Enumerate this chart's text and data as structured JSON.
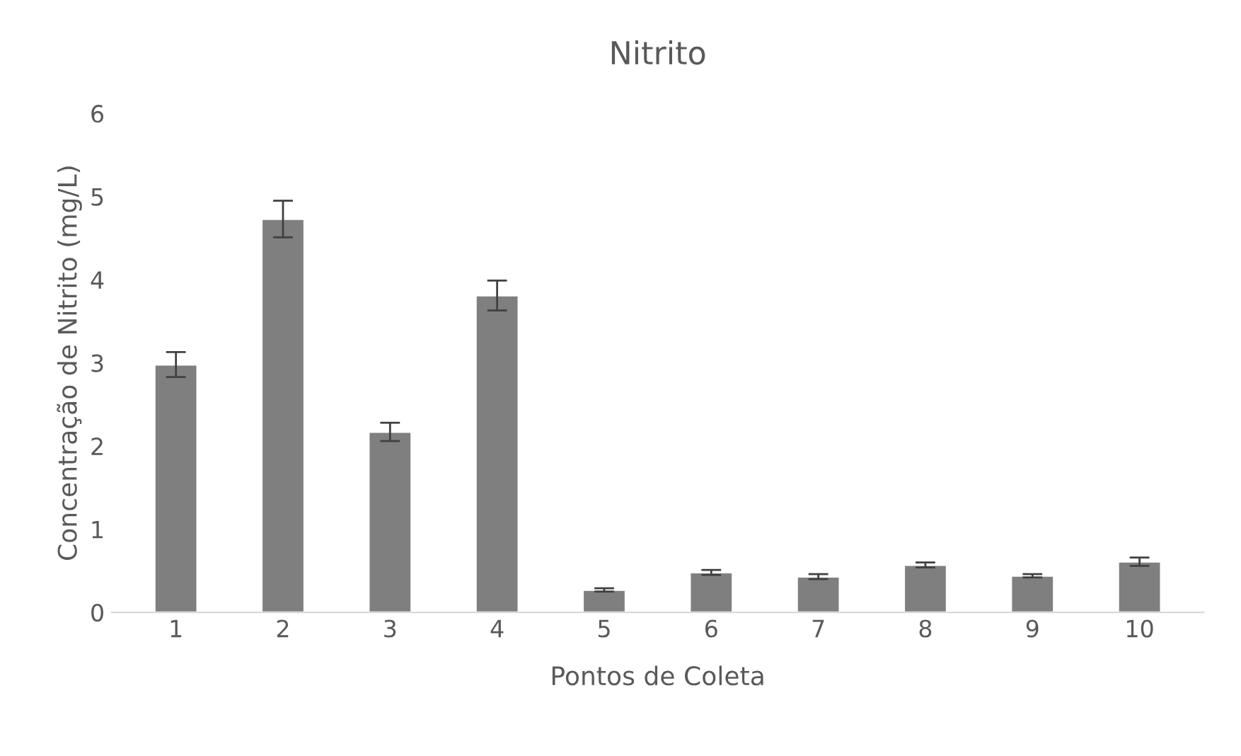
{
  "chart_data": {
    "type": "bar",
    "title": "Nitrito",
    "xlabel": "Pontos de Coleta",
    "ylabel": "Concentração de Nitrito (mg/L)",
    "categories": [
      "1",
      "2",
      "3",
      "4",
      "5",
      "6",
      "7",
      "8",
      "9",
      "10"
    ],
    "values": [
      2.98,
      4.73,
      2.17,
      3.81,
      0.27,
      0.48,
      0.43,
      0.57,
      0.44,
      0.61
    ],
    "errors": [
      0.15,
      0.22,
      0.11,
      0.18,
      0.02,
      0.03,
      0.03,
      0.03,
      0.02,
      0.05
    ],
    "color": "#7f7f7f",
    "ylim": [
      0,
      6
    ],
    "yticks": [
      0,
      1,
      2,
      3,
      4,
      5,
      6
    ],
    "grid": false,
    "legend": false
  }
}
